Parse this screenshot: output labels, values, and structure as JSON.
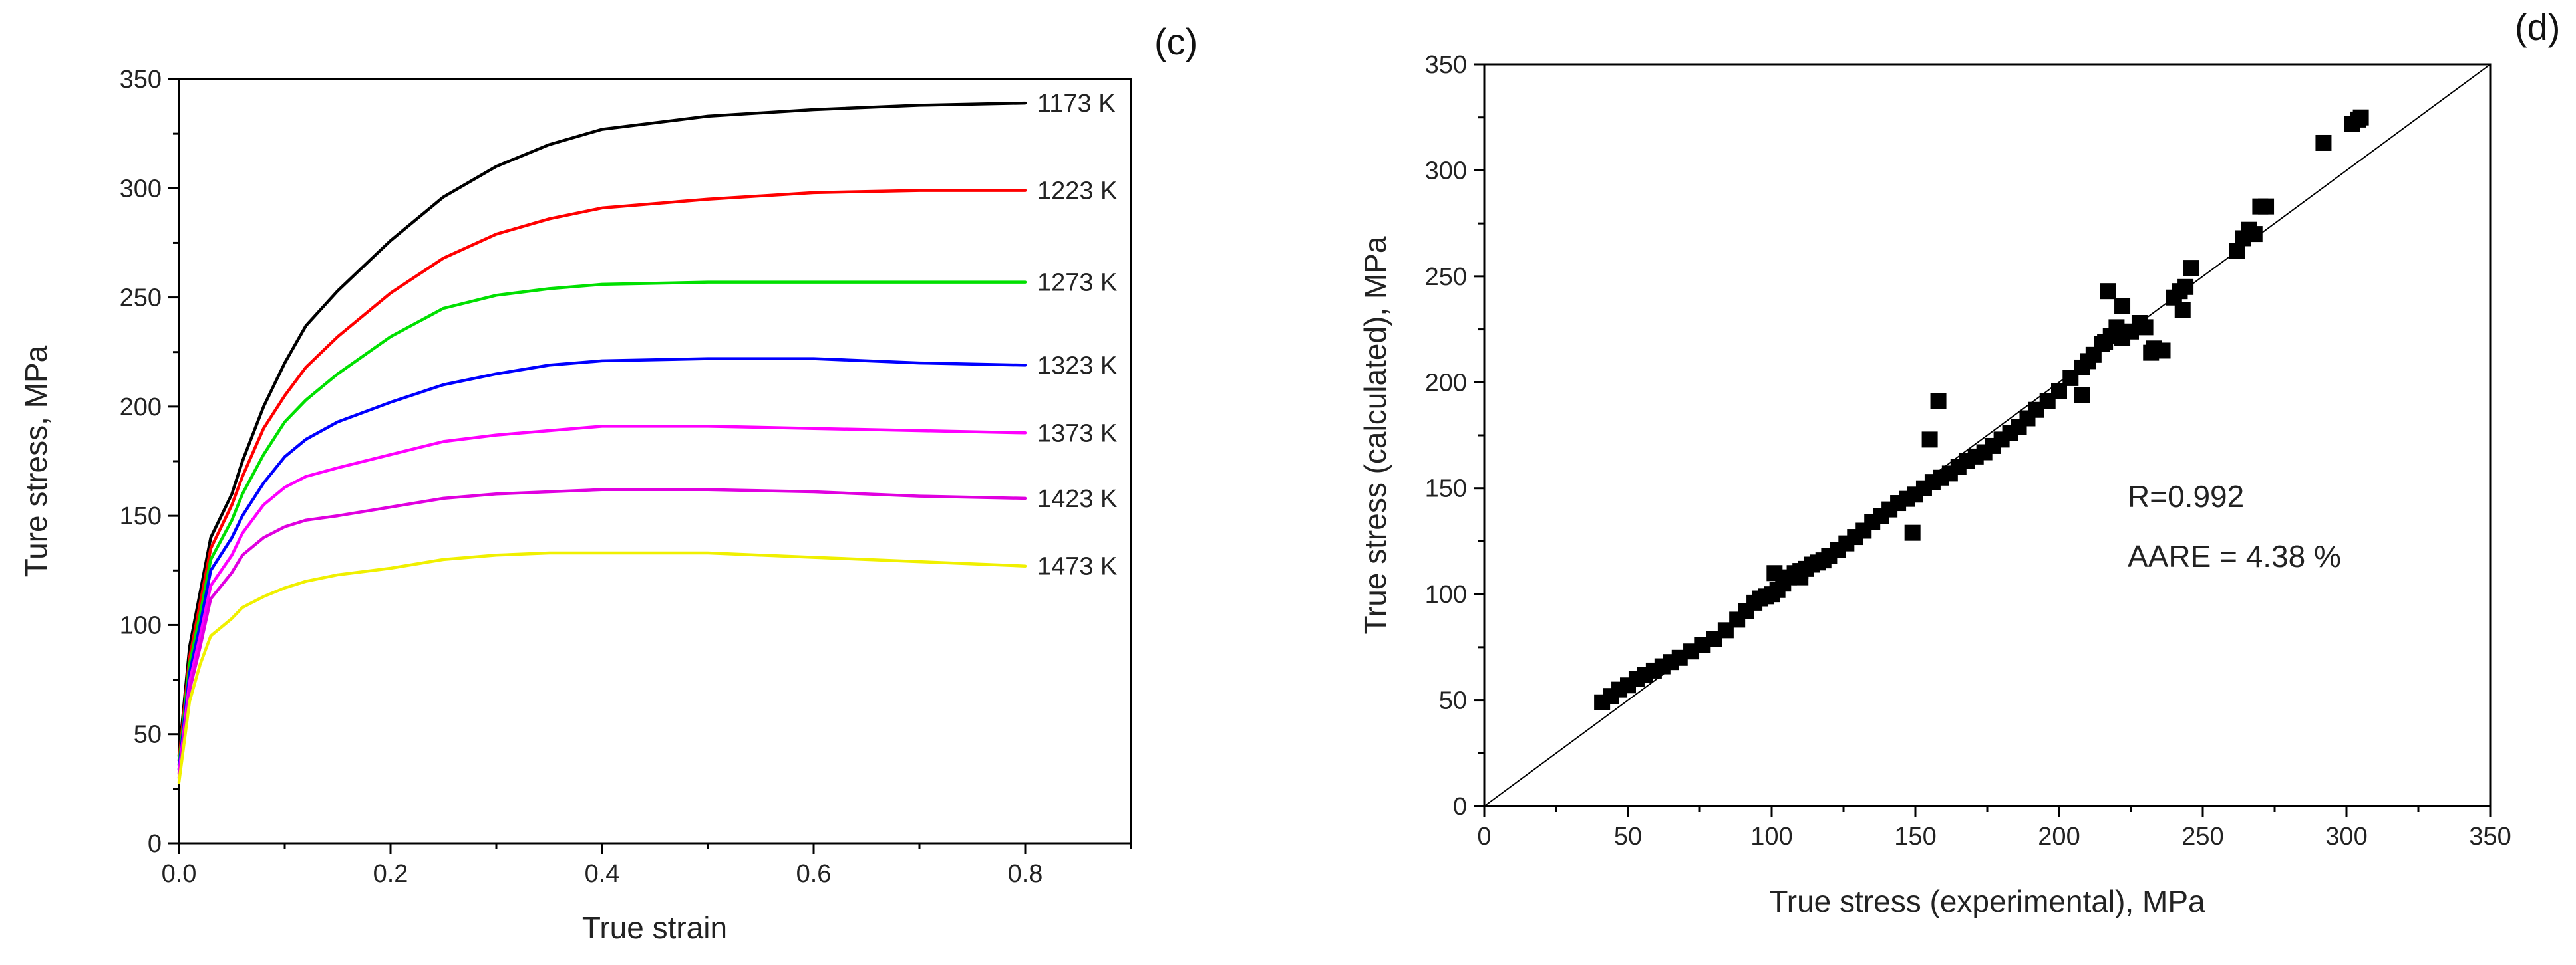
{
  "chart_data": [
    {
      "type": "line",
      "panel_label": "(c)",
      "xlabel": "True strain",
      "ylabel": "Ture stress, MPa",
      "xlim": [
        0.0,
        0.9
      ],
      "ylim": [
        0,
        350
      ],
      "xticks": [
        "0.0",
        "0.2",
        "0.4",
        "0.6",
        "0.8"
      ],
      "yticks": [
        "0",
        "50",
        "100",
        "150",
        "200",
        "250",
        "300",
        "350"
      ],
      "grid": false,
      "series": [
        {
          "name": "1173 K",
          "color": "#000000",
          "x": [
            0,
            0.01,
            0.02,
            0.03,
            0.05,
            0.06,
            0.08,
            0.1,
            0.12,
            0.15,
            0.2,
            0.25,
            0.3,
            0.35,
            0.4,
            0.5,
            0.6,
            0.7,
            0.8
          ],
          "y": [
            40,
            90,
            115,
            140,
            160,
            175,
            200,
            220,
            237,
            253,
            276,
            296,
            310,
            320,
            327,
            333,
            336,
            338,
            339
          ]
        },
        {
          "name": "1223 K",
          "color": "#ff0000",
          "x": [
            0,
            0.01,
            0.02,
            0.03,
            0.05,
            0.06,
            0.08,
            0.1,
            0.12,
            0.15,
            0.2,
            0.25,
            0.3,
            0.35,
            0.4,
            0.5,
            0.6,
            0.7,
            0.8
          ],
          "y": [
            38,
            85,
            110,
            135,
            155,
            168,
            190,
            205,
            218,
            232,
            252,
            268,
            279,
            286,
            291,
            295,
            298,
            299,
            299
          ]
        },
        {
          "name": "1273 K",
          "color": "#00e000",
          "x": [
            0,
            0.01,
            0.02,
            0.03,
            0.05,
            0.06,
            0.08,
            0.1,
            0.12,
            0.15,
            0.2,
            0.25,
            0.3,
            0.35,
            0.4,
            0.5,
            0.6,
            0.7,
            0.8
          ],
          "y": [
            36,
            82,
            105,
            130,
            148,
            160,
            178,
            193,
            203,
            215,
            232,
            245,
            251,
            254,
            256,
            257,
            257,
            257,
            257
          ]
        },
        {
          "name": "1323 K",
          "color": "#0000ff",
          "x": [
            0,
            0.01,
            0.02,
            0.03,
            0.05,
            0.06,
            0.08,
            0.1,
            0.12,
            0.15,
            0.2,
            0.25,
            0.3,
            0.35,
            0.4,
            0.5,
            0.6,
            0.7,
            0.8
          ],
          "y": [
            34,
            78,
            100,
            125,
            140,
            150,
            165,
            177,
            185,
            193,
            202,
            210,
            215,
            219,
            221,
            222,
            222,
            220,
            219
          ]
        },
        {
          "name": "1373 K",
          "color": "#ff00ff",
          "x": [
            0,
            0.01,
            0.02,
            0.03,
            0.05,
            0.06,
            0.08,
            0.1,
            0.12,
            0.15,
            0.2,
            0.25,
            0.3,
            0.35,
            0.4,
            0.5,
            0.6,
            0.7,
            0.8
          ],
          "y": [
            32,
            74,
            95,
            118,
            132,
            142,
            155,
            163,
            168,
            172,
            178,
            184,
            187,
            189,
            191,
            191,
            190,
            189,
            188
          ]
        },
        {
          "name": "1423 K",
          "color": "#e000e0",
          "x": [
            0,
            0.01,
            0.02,
            0.03,
            0.05,
            0.06,
            0.08,
            0.1,
            0.12,
            0.15,
            0.2,
            0.25,
            0.3,
            0.35,
            0.4,
            0.5,
            0.6,
            0.7,
            0.8
          ],
          "y": [
            30,
            70,
            90,
            112,
            124,
            132,
            140,
            145,
            148,
            150,
            154,
            158,
            160,
            161,
            162,
            162,
            161,
            159,
            158
          ]
        },
        {
          "name": "1473 K",
          "color": "#f0f000",
          "x": [
            0,
            0.01,
            0.02,
            0.03,
            0.05,
            0.06,
            0.08,
            0.1,
            0.12,
            0.15,
            0.2,
            0.25,
            0.3,
            0.35,
            0.4,
            0.5,
            0.6,
            0.7,
            0.8
          ],
          "y": [
            28,
            65,
            82,
            95,
            103,
            108,
            113,
            117,
            120,
            123,
            126,
            130,
            132,
            133,
            133,
            133,
            131,
            129,
            127
          ]
        }
      ]
    },
    {
      "type": "scatter",
      "panel_label": "(d)",
      "xlabel": "True stress (experimental), MPa",
      "ylabel": "True stress (calculated), MPa",
      "xlim": [
        0,
        350
      ],
      "ylim": [
        0,
        350
      ],
      "xticks": [
        "0",
        "50",
        "100",
        "150",
        "200",
        "250",
        "300",
        "350"
      ],
      "yticks": [
        "0",
        "50",
        "100",
        "150",
        "200",
        "250",
        "300",
        "350"
      ],
      "grid": false,
      "marker_color": "#000000",
      "reference_line": "y = x",
      "annotations": [
        "R=0.992",
        "AARE = 4.38 %"
      ],
      "x": [
        41,
        44,
        47,
        50,
        53,
        56,
        59,
        62,
        65,
        68,
        72,
        76,
        80,
        84,
        88,
        91,
        94,
        96,
        98,
        100,
        102,
        104,
        106,
        108,
        110,
        112,
        114,
        116,
        118,
        120,
        123,
        126,
        129,
        132,
        135,
        138,
        141,
        144,
        147,
        150,
        153,
        156,
        159,
        162,
        165,
        168,
        171,
        174,
        177,
        180,
        183,
        186,
        189,
        192,
        196,
        200,
        204,
        208,
        210,
        212,
        215,
        218,
        220,
        222,
        225,
        228,
        230,
        233,
        236,
        240,
        242,
        244,
        246,
        262,
        264,
        266,
        268,
        270,
        272,
        292,
        302,
        304,
        305,
        158,
        155,
        217,
        222,
        208,
        216,
        101,
        110,
        149,
        243,
        232
      ],
      "y": [
        49,
        52,
        55,
        57,
        60,
        62,
        64,
        66,
        68,
        70,
        73,
        76,
        79,
        83,
        88,
        92,
        96,
        98,
        99,
        100,
        102,
        105,
        108,
        110,
        111,
        112,
        114,
        115,
        116,
        118,
        121,
        124,
        127,
        130,
        134,
        137,
        140,
        143,
        145,
        147,
        150,
        153,
        155,
        157,
        160,
        163,
        165,
        167,
        170,
        173,
        176,
        179,
        183,
        187,
        191,
        196,
        202,
        207,
        210,
        213,
        218,
        222,
        226,
        221,
        224,
        228,
        226,
        216,
        215,
        240,
        243,
        245,
        254,
        262,
        268,
        272,
        270,
        283,
        283,
        313,
        322,
        324,
        325,
        191,
        173,
        243,
        236,
        194,
        219,
        110,
        108,
        129,
        234,
        214
      ]
    }
  ]
}
